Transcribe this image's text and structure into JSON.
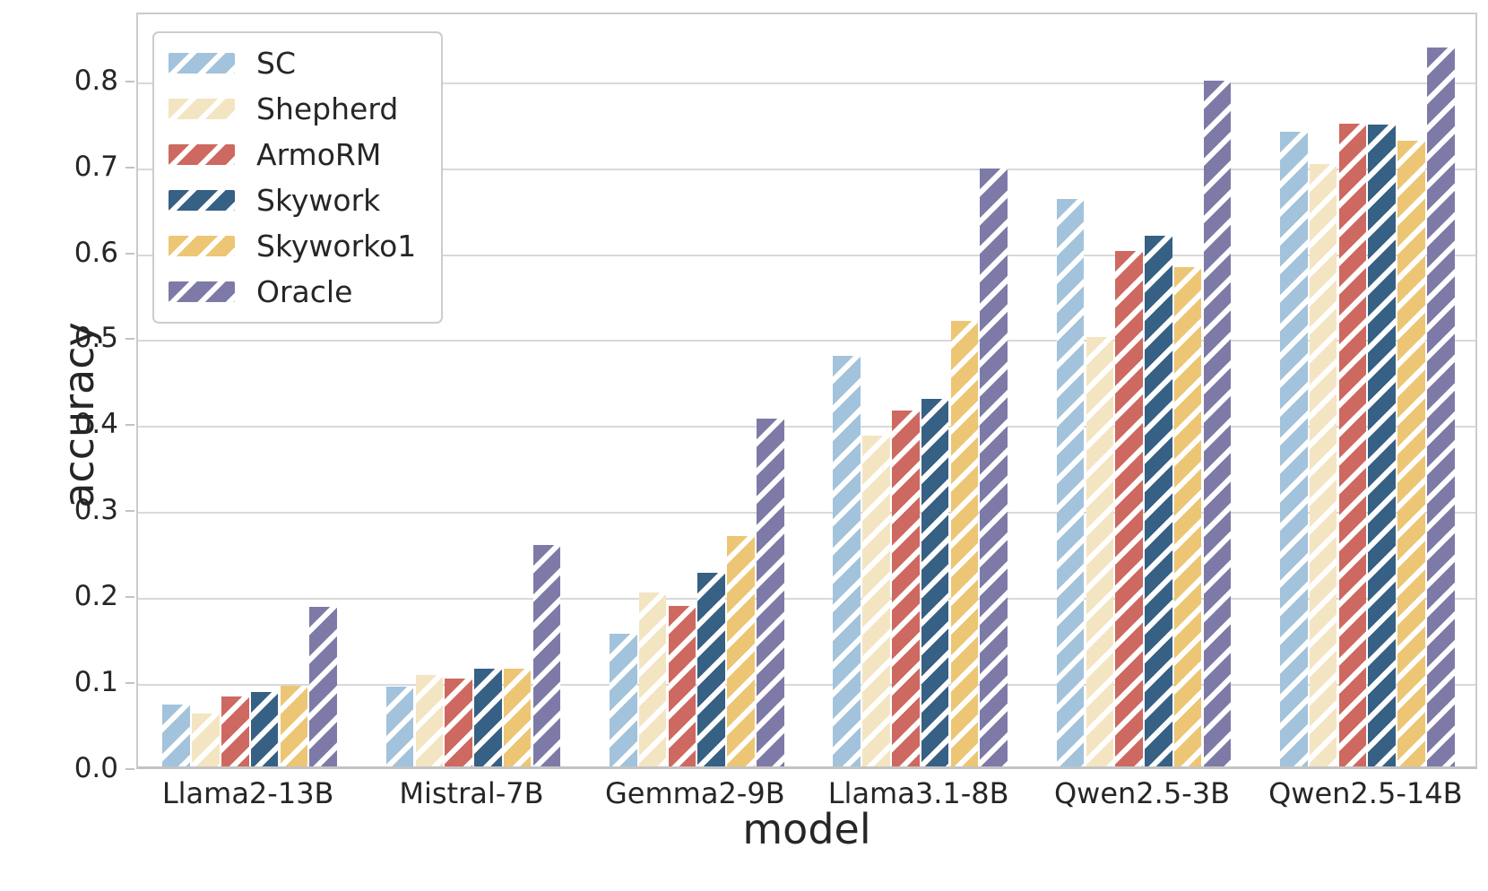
{
  "chart_data": {
    "type": "bar",
    "title": "",
    "xlabel": "model",
    "ylabel": "accuracy",
    "categories": [
      "Llama2-13B",
      "Mistral-7B",
      "Gemma2-9B",
      "Llama3.1-8B",
      "Qwen2.5-3B",
      "Qwen2.5-14B"
    ],
    "series": [
      {
        "name": "SC",
        "color": "#a2c3db",
        "values": [
          0.072,
          0.093,
          0.154,
          0.478,
          0.66,
          0.738
        ]
      },
      {
        "name": "Shepherd",
        "color": "#f4e5c2",
        "values": [
          0.062,
          0.106,
          0.202,
          0.385,
          0.499,
          0.701
        ]
      },
      {
        "name": "ArmoRM",
        "color": "#cd6960",
        "values": [
          0.081,
          0.102,
          0.187,
          0.414,
          0.6,
          0.748
        ]
      },
      {
        "name": "Skywork",
        "color": "#366084",
        "values": [
          0.087,
          0.114,
          0.225,
          0.428,
          0.617,
          0.747
        ]
      },
      {
        "name": "Skyworko1",
        "color": "#ecc674",
        "values": [
          0.094,
          0.114,
          0.268,
          0.518,
          0.581,
          0.728
        ]
      },
      {
        "name": "Oracle",
        "color": "#7e7aa7",
        "values": [
          0.186,
          0.258,
          0.405,
          0.695,
          0.798,
          0.836
        ]
      }
    ],
    "yticks": [
      "0.0",
      "0.1",
      "0.2",
      "0.3",
      "0.4",
      "0.5",
      "0.6",
      "0.7",
      "0.8"
    ],
    "ylim": [
      0,
      0.88
    ],
    "grid": "horizontal",
    "gridline_color": "#d9d9d9",
    "hatch": "/",
    "hatch_color": "#ffffff",
    "legend_position": "upper-left"
  }
}
